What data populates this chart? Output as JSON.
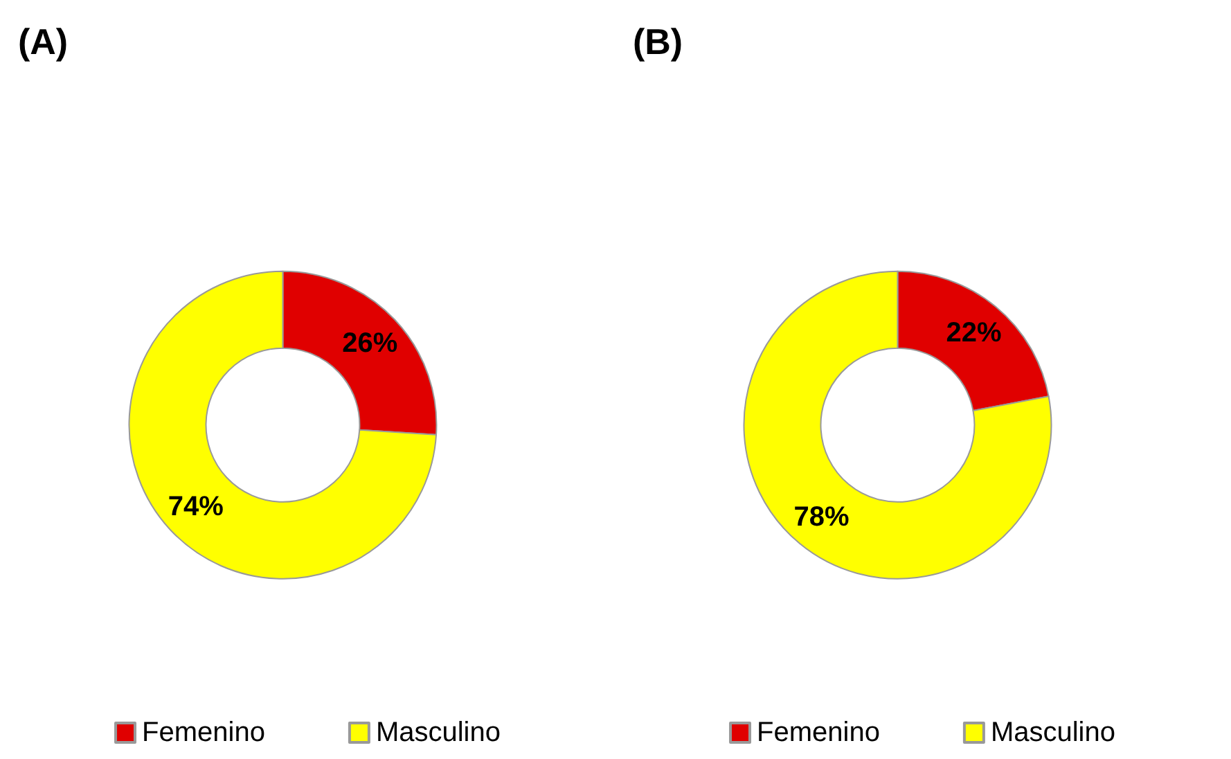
{
  "chart_data": [
    {
      "type": "donut",
      "title": "(A)",
      "categories": [
        "Femenino",
        "Masculino"
      ],
      "values": [
        26,
        74
      ],
      "colors": [
        "#e00000",
        "#ffff00"
      ],
      "value_labels": [
        "26%",
        "74%"
      ],
      "legend": "bottom"
    },
    {
      "type": "donut",
      "title": "(B)",
      "categories": [
        "Femenino",
        "Masculino"
      ],
      "values": [
        22,
        78
      ],
      "colors": [
        "#e00000",
        "#ffff00"
      ],
      "value_labels": [
        "22%",
        "78%"
      ],
      "legend": "bottom"
    }
  ]
}
